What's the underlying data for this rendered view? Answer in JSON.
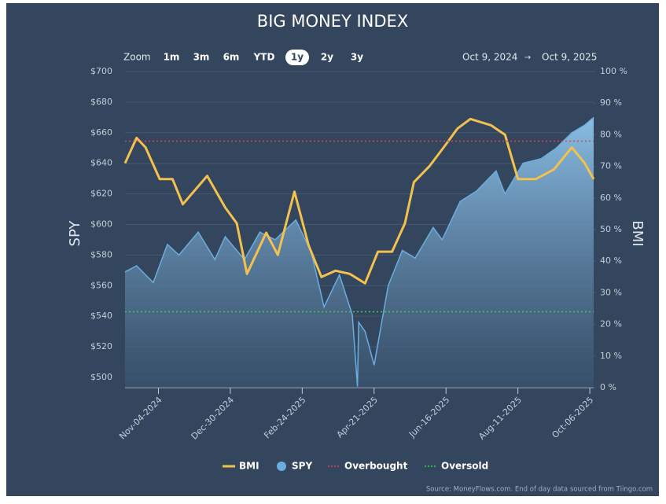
{
  "chart_data": {
    "type": "line",
    "title": "BIG MONEY INDEX",
    "zoom": {
      "label": "Zoom",
      "options": [
        "1m",
        "3m",
        "6m",
        "YTD",
        "1y",
        "2y",
        "3y"
      ],
      "selected_index": 4
    },
    "range": {
      "from": "Oct 9, 2024",
      "to": "Oct 9, 2025"
    },
    "y_label": "SPY",
    "y2_label": "BMI",
    "xlim": [
      "2024-10-09",
      "2025-10-09"
    ],
    "xticks": [
      {
        "value": "2024-11-04",
        "label": "Nov-04-2024"
      },
      {
        "value": "2024-12-30",
        "label": "Dec-30-2024"
      },
      {
        "value": "2025-02-24",
        "label": "Feb-24-2025"
      },
      {
        "value": "2025-04-21",
        "label": "Apr-21-2025"
      },
      {
        "value": "2025-06-16",
        "label": "Jun-16-2025"
      },
      {
        "value": "2025-08-11",
        "label": "Aug-11-2025"
      },
      {
        "value": "2025-10-06",
        "label": "Oct-06-2025"
      }
    ],
    "ylim": [
      493.3,
      700
    ],
    "yticks": [
      {
        "value": 500,
        "label": "$500"
      },
      {
        "value": 520,
        "label": "$520"
      },
      {
        "value": 540,
        "label": "$540"
      },
      {
        "value": 560,
        "label": "$560"
      },
      {
        "value": 580,
        "label": "$580"
      },
      {
        "value": 600,
        "label": "$600"
      },
      {
        "value": 620,
        "label": "$620"
      },
      {
        "value": 640,
        "label": "$640"
      },
      {
        "value": 660,
        "label": "$660"
      },
      {
        "value": 680,
        "label": "$680"
      },
      {
        "value": 700,
        "label": "$700"
      }
    ],
    "y2lim": [
      0,
      100
    ],
    "y2ticks": [
      {
        "value": 0,
        "label": "0 %"
      },
      {
        "value": 10,
        "label": "10 %"
      },
      {
        "value": 20,
        "label": "20 %"
      },
      {
        "value": 30,
        "label": "30 %"
      },
      {
        "value": 40,
        "label": "40 %"
      },
      {
        "value": 50,
        "label": "50 %"
      },
      {
        "value": 60,
        "label": "60 %"
      },
      {
        "value": 70,
        "label": "70 %"
      },
      {
        "value": 80,
        "label": "80 %"
      },
      {
        "value": 90,
        "label": "90 %"
      },
      {
        "value": 100,
        "label": "100 %"
      }
    ],
    "grid": true,
    "series": [
      {
        "name": "BMI",
        "color": "#f2c14e",
        "style": "line",
        "axis": "y2",
        "x": [
          "2024-10-09",
          "2024-10-18",
          "2024-10-25",
          "2024-11-05",
          "2024-11-15",
          "2024-11-23",
          "2024-12-12",
          "2024-12-26",
          "2025-01-04",
          "2025-01-12",
          "2025-01-27",
          "2025-02-05",
          "2025-02-18",
          "2025-03-01",
          "2025-03-11",
          "2025-03-22",
          "2025-04-02",
          "2025-04-14",
          "2025-04-24",
          "2025-05-05",
          "2025-05-15",
          "2025-05-22",
          "2025-06-03",
          "2025-06-16",
          "2025-06-25",
          "2025-07-05",
          "2025-07-21",
          "2025-08-01",
          "2025-08-11",
          "2025-08-25",
          "2025-09-08",
          "2025-09-22",
          "2025-10-02",
          "2025-10-09"
        ],
        "values": [
          71,
          79,
          76,
          66,
          66,
          58,
          67,
          57,
          52,
          36,
          49,
          42,
          62,
          45,
          35,
          37,
          36,
          33,
          43,
          43,
          52,
          65,
          70,
          77,
          82,
          85,
          83,
          80,
          66,
          66,
          69,
          76,
          71,
          66
        ]
      },
      {
        "name": "SPY",
        "color": "#6aaee0",
        "style": "area",
        "axis": "y",
        "x": [
          "2024-10-09",
          "2024-10-18",
          "2024-10-31",
          "2024-11-11",
          "2024-11-20",
          "2024-12-05",
          "2024-12-18",
          "2024-12-26",
          "2025-01-10",
          "2025-01-22",
          "2025-02-03",
          "2025-02-19",
          "2025-03-03",
          "2025-03-13",
          "2025-03-25",
          "2025-04-04",
          "2025-04-08",
          "2025-04-09",
          "2025-04-14",
          "2025-04-21",
          "2025-05-02",
          "2025-05-13",
          "2025-05-23",
          "2025-06-06",
          "2025-06-13",
          "2025-06-27",
          "2025-07-10",
          "2025-07-25",
          "2025-08-01",
          "2025-08-15",
          "2025-08-29",
          "2025-09-10",
          "2025-09-22",
          "2025-10-02",
          "2025-10-09"
        ],
        "values": [
          569,
          573,
          562,
          587,
          580,
          595,
          577,
          592,
          577,
          595,
          590,
          603,
          582,
          546,
          567,
          541,
          494,
          536,
          530,
          508,
          560,
          583,
          578,
          598,
          590,
          615,
          622,
          635,
          620,
          640,
          643,
          650,
          660,
          665,
          670
        ]
      }
    ],
    "reference_lines": [
      {
        "name": "Overbought",
        "color": "#e0405a",
        "value": 78,
        "axis": "y2"
      },
      {
        "name": "Oversold",
        "color": "#3ccf4e",
        "value": 24,
        "axis": "y2"
      }
    ],
    "source": "Source: MoneyFlows.com. End of day data sourced from Tiingo.com"
  }
}
